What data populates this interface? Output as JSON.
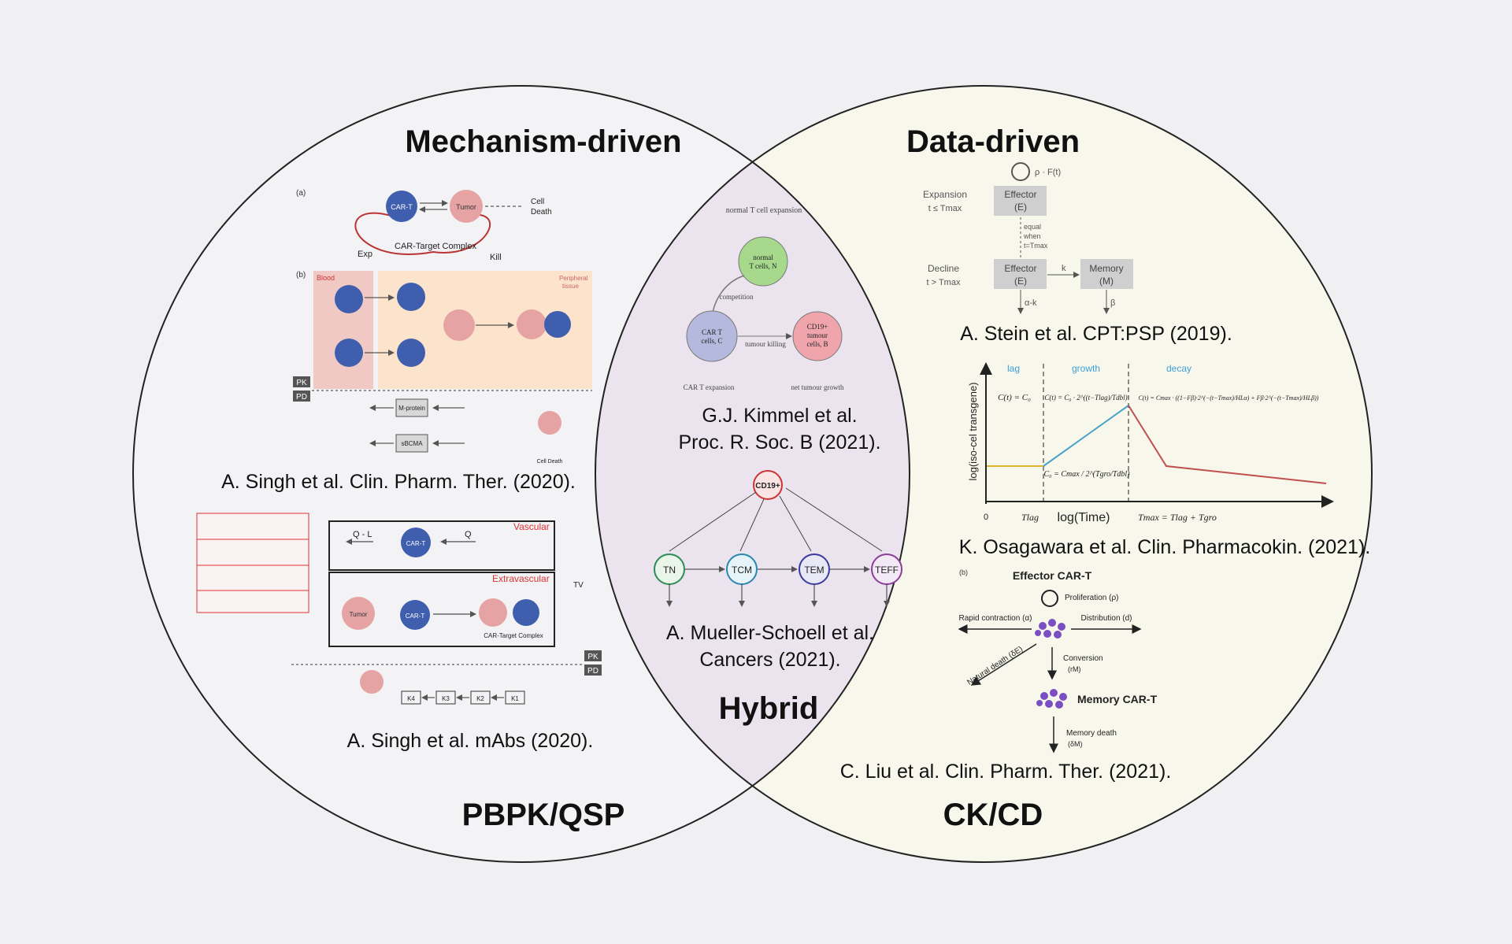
{
  "regions": {
    "left_title": "Mechanism-driven",
    "right_title": "Data-driven",
    "overlap_title": "Hybrid",
    "left_bottom": "PBPK/QSP",
    "right_bottom": "CK/CD"
  },
  "references": {
    "singh_cpt": "A. Singh et al. Clin. Pharm. Ther. (2020).",
    "singh_mabs": "A. Singh et al. mAbs (2020).",
    "kimmel_line1": "G.J. Kimmel et al.",
    "kimmel_line2": "Proc. R. Soc. B (2021).",
    "mueller_line1": "A. Mueller-Schoell et al.",
    "mueller_line2": "Cancers (2021).",
    "stein": "A. Stein et al. CPT:PSP (2019).",
    "osagawara": "K. Osagawara et al. Clin. Pharmacokin. (2021).",
    "liu": "C. Liu et al. Clin. Pharm. Ther. (2021)."
  },
  "singh_cpt_fig": {
    "panel_a": "(a)",
    "panel_b": "(b)",
    "car_t": "CAR-T",
    "tumor": "Tumor",
    "complex": "CAR-Target Complex",
    "exp": "Exp",
    "kill": "Kill",
    "cell_death": "Cell",
    "cell_death2": "Death",
    "blood": "Blood",
    "peripheral": "Peripheral",
    "tissue": "tissue",
    "pk": "PK",
    "pd": "PD",
    "m_protein": "M-protein",
    "sbcma": "sBCMA",
    "cell_death_small": "Cell Death"
  },
  "singh_mabs_fig": {
    "vascular": "Vascular",
    "extravascular": "Extravascular",
    "q_minus_l": "Q - L",
    "q": "Q",
    "tv_total": "TV",
    "pk": "PK",
    "pd": "PD",
    "car_t": "CAR-T",
    "tumor": "Tumor",
    "complex": "CAR-Target Complex",
    "k4": "K4",
    "k3": "K3",
    "k2": "K2",
    "k1": "K1"
  },
  "kimmel_fig": {
    "normal_expansion": "normal T cell expansion",
    "normal_t_1": "normal",
    "normal_t_2": "T cells, N",
    "competition": "competition",
    "car_t_1": "CAR T",
    "car_t_2": "cells, C",
    "tumour_1": "CD19+",
    "tumour_2": "tumour",
    "tumour_3": "cells, B",
    "tumour_killing": "tumour killing",
    "car_expansion": "CAR T expansion",
    "net_growth": "net tumour growth"
  },
  "mueller_fig": {
    "cd19": "CD19+",
    "tn": "TN",
    "tcm": "TCM",
    "tem": "TEM",
    "teff": "TEFF"
  },
  "stein_fig": {
    "expansion": "Expansion",
    "expansion_cond": "t ≤ Tmax",
    "decline": "Decline",
    "decline_cond": "t > Tmax",
    "effector": "Effector",
    "effector_e": "(E)",
    "memory": "Memory",
    "memory_m": "(M)",
    "rho": "ρ · F(t)",
    "equal1": "equal",
    "equal2": "when",
    "equal3": "t=Tmax",
    "k": "k",
    "alpha_k": "α-k",
    "beta": "β"
  },
  "osagawara_fig": {
    "ylabel": "log(iso-cel transgene)",
    "xlabel": "log(Time)",
    "lag": "lag",
    "growth": "growth",
    "decay": "decay",
    "eq_lag": "C(t) = C₀",
    "eq_growth": "C(t) = C₀ · 2^((t−Tlag)/Tdbl)",
    "eq_decay": "C(t) = Cmax · ((1−Fβ)·2^(−(t−Tmax)/HLα) + Fβ·2^(−(t−Tmax)/HLβ))",
    "eq_c0": "C₀ = Cmax / 2^(Tgro/Tdbl)",
    "zero": "0",
    "tlag": "Tlag",
    "tmax": "Tmax = Tlag + Tgro"
  },
  "liu_fig": {
    "panel": "(b)",
    "effector": "Effector CAR-T",
    "proliferation": "Proliferation (ρ)",
    "rapid": "Rapid contraction (α)",
    "distribution": "Distribution (d)",
    "natural": "Natural death (δE)",
    "conversion": "Conversion",
    "conversion_r": "(rM)",
    "memory": "Memory CAR-T",
    "memory_death": "Memory death",
    "memory_death_d": "(δM)"
  },
  "colors": {
    "background": "#f0f0f2",
    "left_fill": "#f2f2f5",
    "right_fill": "#f8f7ec",
    "overlap_fill": "#ece6ee",
    "car_t_blue": "#3f5fae",
    "tumor_pink": "#e6a3a3",
    "growth_line": "#4aa3c9",
    "decay_line": "#c0504d",
    "lag_line": "#e0b030",
    "phase_blue": "#3da0d8"
  }
}
